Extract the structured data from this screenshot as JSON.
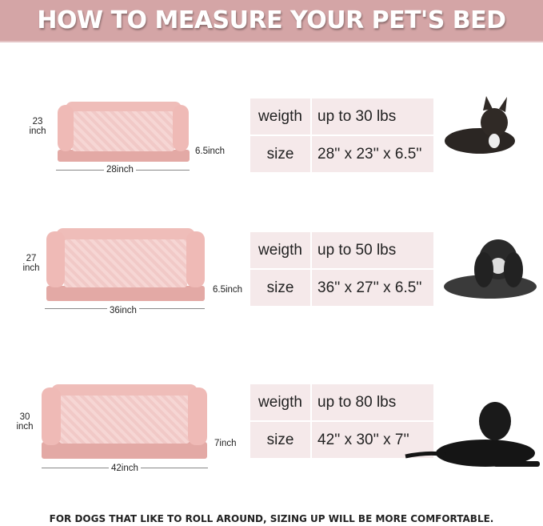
{
  "header": {
    "title": "HOW TO MEASURE YOUR PET'S BED"
  },
  "sizes": [
    {
      "weight_label": "weigth",
      "weight": "up to 30 lbs",
      "size_label": "size",
      "size": "28'' x 23'' x 6.5''",
      "depth_dim": "23",
      "depth_unit": "inch",
      "height_dim": "6.5inch",
      "width_dim": "28inch"
    },
    {
      "weight_label": "weigth",
      "weight": "up to 50 lbs",
      "size_label": "size",
      "size": "36'' x 27'' x 6.5''",
      "depth_dim": "27",
      "depth_unit": "inch",
      "height_dim": "6.5inch",
      "width_dim": "36inch"
    },
    {
      "weight_label": "weigth",
      "weight": "up to 80 lbs",
      "size_label": "size",
      "size": "42'' x 30'' x 7''",
      "depth_dim": "30",
      "depth_unit": "inch",
      "height_dim": "7inch",
      "width_dim": "42inch"
    }
  ],
  "colors": {
    "header": "#d4a5a6",
    "table": "#f5e9ea",
    "bed": "#efbdb9"
  },
  "footer": {
    "note": "FOR DOGS THAT LIKE TO ROLL AROUND, SIZING UP WILL BE MORE COMFORTABLE."
  }
}
